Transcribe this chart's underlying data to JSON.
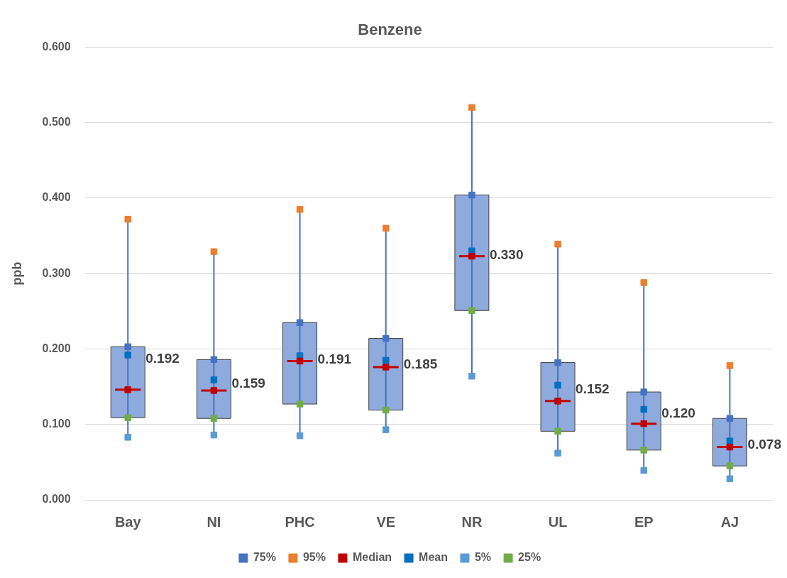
{
  "chart_data": {
    "type": "box",
    "title": "Benzene",
    "ylabel": "ppb",
    "categories": [
      "Bay",
      "NI",
      "PHC",
      "VE",
      "NR",
      "UL",
      "EP",
      "AJ"
    ],
    "ylim": [
      0,
      0.6
    ],
    "yticks": [
      {
        "value": 0,
        "label": "0.000"
      },
      {
        "value": 0.1,
        "label": "0.100"
      },
      {
        "value": 0.2,
        "label": "0.200"
      },
      {
        "value": 0.3,
        "label": "0.300"
      },
      {
        "value": 0.4,
        "label": "0.400"
      },
      {
        "value": 0.5,
        "label": "0.500"
      },
      {
        "value": 0.6,
        "label": "0.600"
      }
    ],
    "grid": "y",
    "legend": "bottom",
    "color": "#8faadc",
    "boxes": [
      {
        "low": 0.083,
        "q1": 0.109,
        "median": 0.146,
        "q3": 0.203,
        "high": 0.372
      },
      {
        "low": 0.086,
        "q1": 0.108,
        "median": 0.145,
        "q3": 0.186,
        "high": 0.329
      },
      {
        "low": 0.085,
        "q1": 0.127,
        "median": 0.184,
        "q3": 0.235,
        "high": 0.385
      },
      {
        "low": 0.093,
        "q1": 0.119,
        "median": 0.176,
        "q3": 0.214,
        "high": 0.36
      },
      {
        "low": 0.164,
        "q1": 0.251,
        "median": 0.323,
        "q3": 0.404,
        "high": 0.52
      },
      {
        "low": 0.062,
        "q1": 0.091,
        "median": 0.131,
        "q3": 0.182,
        "high": 0.339
      },
      {
        "low": 0.039,
        "q1": 0.066,
        "median": 0.101,
        "q3": 0.143,
        "high": 0.288
      },
      {
        "low": 0.028,
        "q1": 0.045,
        "median": 0.07,
        "q3": 0.108,
        "high": 0.178
      }
    ],
    "series": [
      {
        "type": "scatter",
        "name": "75%",
        "color": "#4472c4",
        "marker": "square",
        "values": [
          0.203,
          0.186,
          0.235,
          0.214,
          0.404,
          0.182,
          0.143,
          0.108
        ]
      },
      {
        "type": "scatter",
        "name": "95%",
        "color": "#ed7d31",
        "marker": "square",
        "values": [
          0.372,
          0.329,
          0.385,
          0.36,
          0.52,
          0.339,
          0.288,
          0.178
        ]
      },
      {
        "type": "scatter",
        "name": "Median",
        "color": "#c00000",
        "marker": "square",
        "values": [
          0.146,
          0.145,
          0.184,
          0.176,
          0.323,
          0.131,
          0.101,
          0.07
        ]
      },
      {
        "type": "scatter",
        "name": "Mean",
        "color": "#0070c0",
        "marker": "square",
        "values": [
          0.192,
          0.159,
          0.191,
          0.185,
          0.33,
          0.152,
          0.12,
          0.078
        ],
        "value_labels": [
          "0.192",
          "0.159",
          "0.191",
          "0.185",
          "0.330",
          "0.152",
          "0.120",
          "0.078"
        ]
      },
      {
        "type": "scatter",
        "name": "5%",
        "color": "#5b9bd5",
        "marker": "square",
        "values": [
          0.083,
          0.086,
          0.085,
          0.093,
          0.164,
          0.062,
          0.039,
          0.028
        ]
      },
      {
        "type": "scatter",
        "name": "25%",
        "color": "#70ad47",
        "marker": "square",
        "values": [
          0.109,
          0.108,
          0.127,
          0.119,
          0.251,
          0.091,
          0.066,
          0.045
        ]
      }
    ]
  }
}
